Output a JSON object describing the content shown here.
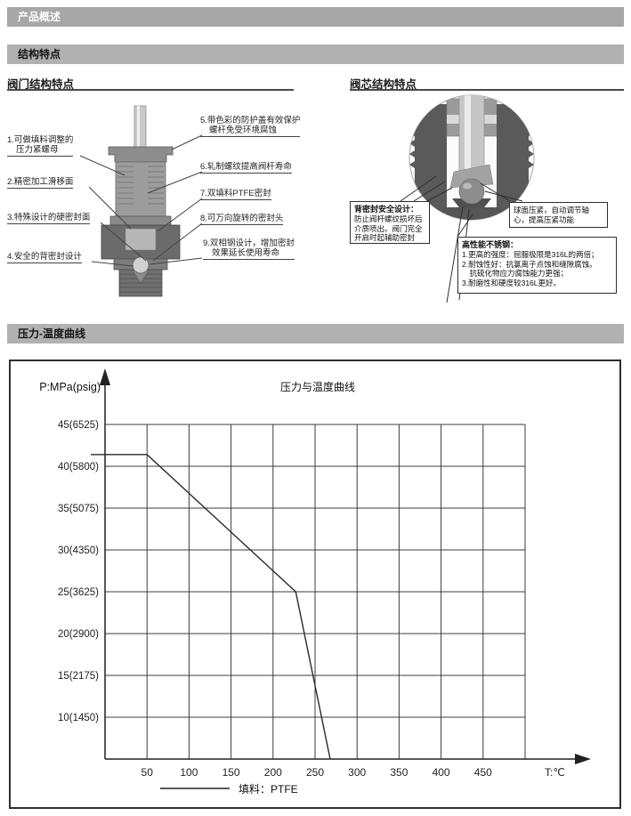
{
  "sections": {
    "overview": "产品概述",
    "structure": "结构特点",
    "pt_curve": "压力-温度曲线"
  },
  "valve": {
    "title": "阀门结构特点",
    "labels": [
      {
        "line1": "1.可做填料调整的",
        "line2": "压力紧螺母"
      },
      {
        "line1": "2.精密加工滑移面"
      },
      {
        "line1": "3.特殊设计的硬密封面"
      },
      {
        "line1": "4.安全的背密封设计"
      },
      {
        "line1": "5.带色彩的防护盖有效保护",
        "line2": "螺杆免受环境腐蚀"
      },
      {
        "line1": "6.轧制螺纹提高阀杆寿命"
      },
      {
        "line1": "7.双填料PTFE密封"
      },
      {
        "line1": "8.可万向旋转的密封头"
      },
      {
        "line1": "9.双相钢设计，增加密封",
        "line2": "效果延长使用寿命"
      }
    ]
  },
  "core": {
    "title": "阀芯结构特点",
    "callout_back_seal": {
      "title": "背密封安全设计：",
      "lines": [
        "防止阀杆螺纹损坏后",
        "介质喷出。阀门完全",
        "开启时起辅助密封"
      ]
    },
    "callout_ball": {
      "lines": [
        "球面压紧，自动调节轴",
        "心，提高压紧功能"
      ]
    },
    "callout_steel": {
      "title": "高性能不锈钢：",
      "lines": [
        "1.更高的强度：屈服极限是316L的两倍；",
        "2.耐蚀性好：抗氯离子点蚀和缝隙腐蚀。",
        "　抗硫化物应力腐蚀能力更强；",
        "3.耐磨性和硬度较316L更好。"
      ]
    }
  },
  "chart_data": {
    "type": "line",
    "title": "压力与温度曲线",
    "ylabel": "P:MPa(psig)",
    "xlabel": "T:℃",
    "x_ticks": [
      50,
      100,
      150,
      200,
      250,
      300,
      350,
      400,
      450
    ],
    "x_grid_max": 500,
    "xlim": [
      0,
      500
    ],
    "y_axis_bottom": 5,
    "y_ticks": [
      {
        "v": 45,
        "label": "45(6525)"
      },
      {
        "v": 40,
        "label": "40(5800)"
      },
      {
        "v": 35,
        "label": "35(5075)"
      },
      {
        "v": 30,
        "label": "30(4350)"
      },
      {
        "v": 25,
        "label": "25(3625)"
      },
      {
        "v": 20,
        "label": "20(2900)"
      },
      {
        "v": 15,
        "label": "15(2175)"
      },
      {
        "v": 10,
        "label": "10(1450)"
      }
    ],
    "series": [
      {
        "name": "填料：PTFE",
        "points": [
          [
            0,
            41.4
          ],
          [
            50,
            41.4
          ],
          [
            227,
            25
          ],
          [
            268,
            5
          ]
        ]
      }
    ],
    "legend": "填料：PTFE",
    "grid": true,
    "legend_position": "bottom-center",
    "colors": {
      "line": "#2a2a2a",
      "grid": "#3c3c3c",
      "bar_gray": "#a7a7a7"
    }
  }
}
